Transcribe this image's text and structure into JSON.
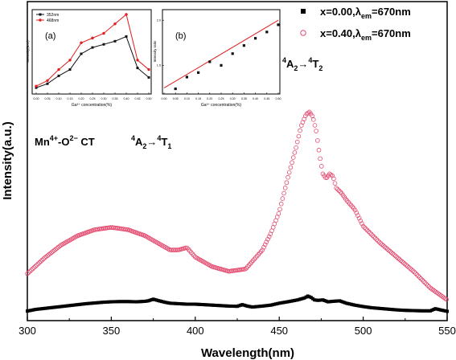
{
  "chart_data": {
    "type": "scatter",
    "xlabel": "Wavelength(nm)",
    "ylabel": "Intensity(a.u.)",
    "xlim": [
      300,
      550
    ],
    "ylim": [
      0,
      1
    ],
    "xticks": [
      "300",
      "350",
      "400",
      "450",
      "500",
      "550"
    ],
    "grid": false,
    "legend_position": "top-right",
    "annotations": {
      "ct_band": {
        "parts": [
          "Mn",
          "4+",
          "-O",
          "2−",
          " CT"
        ]
      },
      "t1_band": {
        "parts": [
          "4",
          "A",
          "2",
          "→",
          "4",
          "T",
          "1"
        ]
      },
      "t2_band": {
        "parts": [
          "4",
          "A",
          "2",
          "→",
          "4",
          "T",
          "2"
        ]
      }
    },
    "series": [
      {
        "name": "x=0.00,λem=670nm",
        "legend_parts": [
          "x=0.00,",
          "λ",
          "em",
          "=670nm"
        ],
        "marker": "filled-square",
        "color": "#000000",
        "x": [
          300,
          305,
          310,
          315,
          320,
          325,
          330,
          335,
          340,
          345,
          350,
          355,
          360,
          365,
          370,
          372,
          375,
          378,
          382,
          385,
          390,
          395,
          400,
          405,
          410,
          415,
          420,
          425,
          428,
          431,
          434,
          440,
          445,
          450,
          455,
          458,
          461,
          463,
          465,
          467,
          469,
          471,
          473,
          476,
          479,
          482,
          486,
          490,
          495,
          500,
          505,
          510,
          515,
          520,
          525,
          530,
          535,
          540,
          543,
          546,
          550
        ],
        "y": [
          0.003,
          0.01,
          0.014,
          0.018,
          0.022,
          0.026,
          0.03,
          0.034,
          0.037,
          0.04,
          0.042,
          0.043,
          0.043,
          0.042,
          0.044,
          0.046,
          0.053,
          0.047,
          0.04,
          0.036,
          0.034,
          0.032,
          0.032,
          0.03,
          0.028,
          0.026,
          0.024,
          0.023,
          0.03,
          0.024,
          0.02,
          0.024,
          0.028,
          0.036,
          0.042,
          0.046,
          0.05,
          0.054,
          0.058,
          0.066,
          0.06,
          0.05,
          0.048,
          0.05,
          0.042,
          0.044,
          0.046,
          0.036,
          0.028,
          0.022,
          0.017,
          0.014,
          0.011,
          0.008,
          0.006,
          0.005,
          0.004,
          0.004,
          0.013,
          0.008,
          0.002
        ]
      },
      {
        "name": "x=0.40,λem=670nm",
        "legend_parts": [
          "x=0.40,",
          "λ",
          "em",
          "=670nm"
        ],
        "marker": "open-circle",
        "color": "#e34a6f",
        "x": [
          300,
          310,
          320,
          330,
          340,
          350,
          360,
          370,
          380,
          385,
          390,
          395,
          400,
          410,
          420,
          430,
          440,
          445,
          450,
          455,
          460,
          463,
          466,
          468,
          470,
          472,
          474,
          476,
          478,
          480,
          482,
          484,
          487,
          490,
          495,
          500,
          510,
          520,
          530,
          540,
          545,
          550
        ],
        "y": [
          0.16,
          0.225,
          0.28,
          0.32,
          0.345,
          0.355,
          0.345,
          0.32,
          0.28,
          0.26,
          0.26,
          0.27,
          0.23,
          0.19,
          0.17,
          0.18,
          0.26,
          0.33,
          0.42,
          0.56,
          0.69,
          0.78,
          0.83,
          0.84,
          0.82,
          0.76,
          0.66,
          0.58,
          0.56,
          0.58,
          0.57,
          0.52,
          0.5,
          0.47,
          0.43,
          0.36,
          0.29,
          0.23,
          0.17,
          0.1,
          0.075,
          0.05
        ]
      }
    ],
    "insets": [
      {
        "panel_label": "(a)",
        "type": "line",
        "xlabel": "Ga³⁺ concentration(%)",
        "ylabel": "Intensity(a.u.)",
        "x": [
          0,
          0.05,
          0.1,
          0.15,
          0.2,
          0.25,
          0.3,
          0.35,
          0.4,
          0.45,
          0.5
        ],
        "xticks": [
          "0.00",
          "0.05",
          "0.10",
          "0.15",
          "0.20",
          "0.25",
          "0.30",
          "0.35",
          "0.40",
          "0.45",
          "0.50"
        ],
        "ylim": [
          0,
          1
        ],
        "series": [
          {
            "name": "352nm",
            "color": "#111111",
            "y": [
              0.05,
              0.1,
              0.2,
              0.28,
              0.48,
              0.56,
              0.6,
              0.64,
              0.7,
              0.3,
              0.18
            ]
          },
          {
            "name": "468nm",
            "color": "#e02020",
            "y": [
              0.07,
              0.14,
              0.28,
              0.4,
              0.62,
              0.68,
              0.74,
              0.86,
              0.98,
              0.4,
              0.28
            ]
          }
        ]
      },
      {
        "panel_label": "(b)",
        "type": "scatter",
        "xlabel": "Ga³⁺ concentration(%)",
        "ylabel": "Intensity ratio",
        "xlim": [
          0,
          0.5
        ],
        "ylim": [
          1.2,
          2.1
        ],
        "xticks": [
          "0.00",
          "0.05",
          "0.10",
          "0.15",
          "0.20",
          "0.25",
          "0.30",
          "0.35",
          "0.40",
          "0.45",
          "0.50"
        ],
        "yticks": [
          "1.5",
          "2.0"
        ],
        "fit_line": {
          "color": "#e02020",
          "x": [
            0,
            0.5
          ],
          "y": [
            1.25,
            2.0
          ]
        },
        "points_x": [
          0.05,
          0.1,
          0.15,
          0.2,
          0.25,
          0.3,
          0.35,
          0.4,
          0.45,
          0.5
        ],
        "points_y": [
          1.24,
          1.37,
          1.42,
          1.54,
          1.5,
          1.63,
          1.72,
          1.8,
          1.87,
          1.95
        ]
      }
    ]
  }
}
